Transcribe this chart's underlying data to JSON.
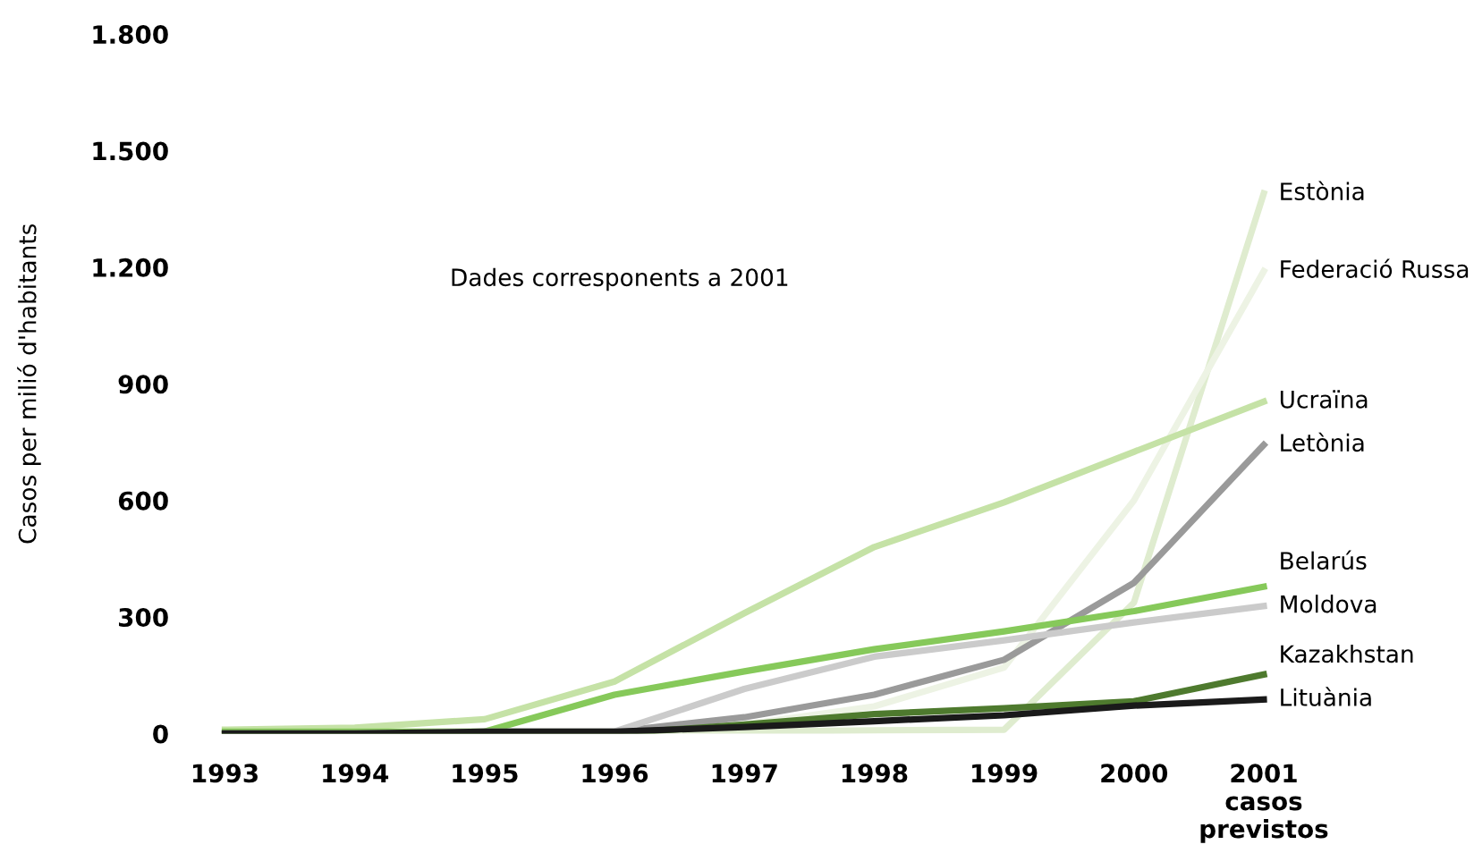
{
  "chart_data": {
    "type": "line",
    "ylabel": "Casos per milió d'habitants",
    "annotations": [
      "Dades corresponents a 2001"
    ],
    "categories": [
      "1993",
      "1994",
      "1995",
      "1996",
      "1997",
      "1998",
      "1999",
      "2000",
      "2001\ncasos\nprevistos"
    ],
    "ylim": [
      0,
      1800
    ],
    "yticks": [
      0,
      300,
      600,
      900,
      {
        "value": 1200,
        "label": "1.200"
      },
      {
        "value": 1500,
        "label": "1.500"
      },
      {
        "value": 1800,
        "label": "1.800"
      }
    ],
    "grid": false,
    "legend": false,
    "marker": "none",
    "line_style": "solid",
    "series": [
      {
        "name": "Estònia",
        "color": "#dfeccf",
        "values": [
          5,
          5,
          5,
          5,
          5,
          8,
          10,
          337,
          1390
        ]
      },
      {
        "name": "Federació Russa",
        "color": "#edf3e4",
        "values": [
          3,
          3,
          5,
          5,
          23,
          70,
          170,
          600,
          1190
        ]
      },
      {
        "name": "Ucraïna",
        "color": "#c5e2a6",
        "values": [
          10,
          15,
          37,
          134,
          310,
          480,
          595,
          725,
          854
        ]
      },
      {
        "name": "Letònia",
        "color": "#9a9a9a",
        "values": [
          0,
          0,
          5,
          5,
          42,
          100,
          190,
          388,
          743
        ]
      },
      {
        "name": "Belarús",
        "color": "#86c95a",
        "values": [
          5,
          5,
          5,
          100,
          160,
          217,
          263,
          315,
          378
        ]
      },
      {
        "name": "Moldova",
        "color": "#cbcbcb",
        "values": [
          0,
          0,
          5,
          5,
          115,
          198,
          240,
          286,
          328
        ]
      },
      {
        "name": "Kazakhstan",
        "color": "#4e7a2e",
        "values": [
          0,
          0,
          0,
          0,
          23,
          50,
          65,
          83,
          152
        ]
      },
      {
        "name": "Lituània",
        "color": "#1a1a1a",
        "values": [
          0,
          0,
          5,
          5,
          17,
          32,
          47,
          72,
          88
        ]
      }
    ]
  }
}
